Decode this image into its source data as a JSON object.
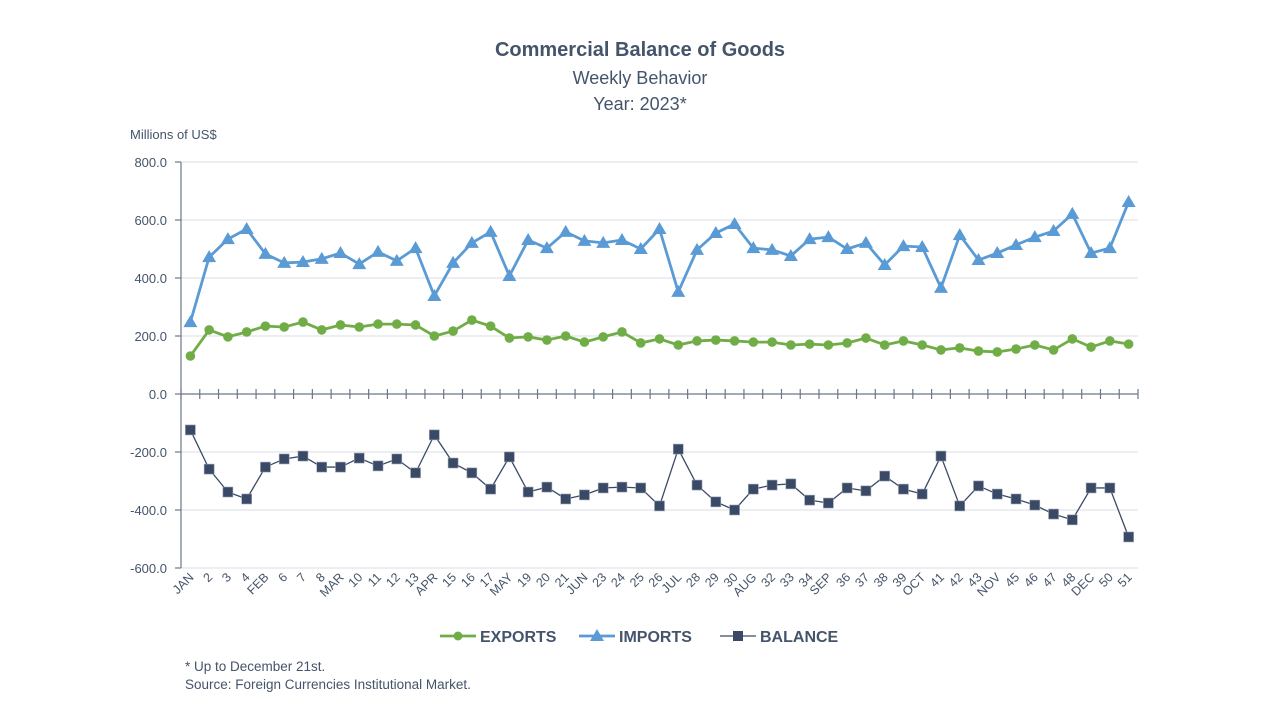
{
  "chart_data": {
    "type": "line",
    "title": "Commercial Balance of Goods",
    "subtitle": "Weekly Behavior",
    "year_label": "Year: 2023*",
    "ylabel": "Millions of US$",
    "xlabel": "",
    "ylim": [
      -600,
      800
    ],
    "yticks": [
      800,
      600,
      400,
      200,
      0,
      -200,
      -400,
      -600
    ],
    "ytick_labels": [
      "800.0",
      "600.0",
      "400.0",
      "200.0",
      "0.0",
      "-200.0",
      "-400.0",
      "-600.0"
    ],
    "grid": true,
    "legend_position": "bottom-center",
    "categories": [
      "JAN",
      "2",
      "3",
      "4",
      "FEB",
      "6",
      "7",
      "8",
      "MAR",
      "10",
      "11",
      "12",
      "13",
      "APR",
      "15",
      "16",
      "17",
      "MAY",
      "19",
      "20",
      "21",
      "JUN",
      "23",
      "24",
      "25",
      "26",
      "JUL",
      "28",
      "29",
      "30",
      "AUG",
      "32",
      "33",
      "34",
      "SEP",
      "36",
      "37",
      "38",
      "39",
      "OCT",
      "41",
      "42",
      "43",
      "NOV",
      "45",
      "46",
      "47",
      "48",
      "DEC",
      "50",
      "51"
    ],
    "series": [
      {
        "name": "EXPORTS",
        "color": "#70AD47",
        "marker": "circle",
        "values": [
          131,
          221,
          197,
          214,
          234,
          231,
          248,
          221,
          238,
          231,
          241,
          241,
          238,
          200,
          217,
          255,
          234,
          193,
          197,
          186,
          200,
          179,
          197,
          214,
          176,
          190,
          169,
          183,
          186,
          183,
          179,
          179,
          169,
          172,
          169,
          176,
          193,
          169,
          183,
          169,
          152,
          159,
          148,
          145,
          155,
          169,
          152,
          190,
          162,
          183,
          172
        ]
      },
      {
        "name": "IMPORTS",
        "color": "#5B9BD5",
        "marker": "triangle",
        "values": [
          248,
          472,
          534,
          569,
          483,
          452,
          455,
          466,
          486,
          448,
          490,
          459,
          503,
          338,
          452,
          521,
          559,
          407,
          531,
          503,
          559,
          528,
          521,
          531,
          500,
          569,
          352,
          497,
          555,
          586,
          503,
          497,
          476,
          534,
          541,
          500,
          521,
          445,
          510,
          507,
          366,
          548,
          462,
          486,
          514,
          541,
          562,
          621,
          486,
          503,
          662
        ]
      },
      {
        "name": "BALANCE",
        "color": "#3A4A66",
        "marker": "square",
        "values": [
          -124,
          -259,
          -338,
          -362,
          -252,
          -224,
          -214,
          -252,
          -252,
          -221,
          -248,
          -224,
          -272,
          -141,
          -238,
          -272,
          -328,
          -217,
          -338,
          -321,
          -362,
          -348,
          -324,
          -321,
          -324,
          -386,
          -190,
          -314,
          -372,
          -400,
          -328,
          -314,
          -310,
          -366,
          -376,
          -324,
          -334,
          -283,
          -328,
          -345,
          -214,
          -386,
          -317,
          -345,
          -362,
          -383,
          -414,
          -434,
          -324,
          -324,
          -493
        ]
      }
    ],
    "footnotes": [
      "* Up to December 21st.",
      "Source: Foreign Currencies Institutional Market."
    ]
  }
}
